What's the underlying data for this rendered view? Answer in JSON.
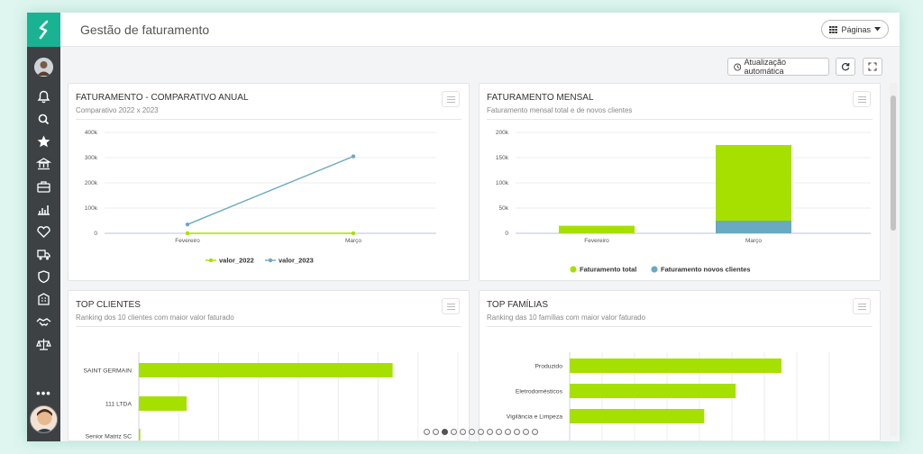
{
  "app": {
    "title": "Gestão de faturamento"
  },
  "header": {
    "pages_label": "Páginas"
  },
  "toolbar": {
    "auto_update_label": "Atualização automática"
  },
  "sidebar": {
    "icons": [
      "bell-icon",
      "search-icon",
      "star-icon",
      "bank-icon",
      "briefcase-icon",
      "chart-icon",
      "heart-icon",
      "truck-icon",
      "shield-icon",
      "building-icon",
      "handshake-icon",
      "scale-icon"
    ],
    "more_label": "•••"
  },
  "panels": {
    "comparativo": {
      "title": "FATURAMENTO - COMPARATIVO ANUAL",
      "subtitle": "Comparativo 2022 x 2023"
    },
    "mensal": {
      "title": "FATURAMENTO MENSAL",
      "subtitle": "Faturamento mensal total e de novos clientes"
    },
    "clientes": {
      "title": "TOP CLIENTES",
      "subtitle": "Ranking dos 10 clientes com maior valor faturado"
    },
    "familias": {
      "title": "TOP FAMÍLIAS",
      "subtitle": "Ranking das 10 famílias com maior valor faturado"
    }
  },
  "pagination": {
    "total": 13,
    "active": 3
  },
  "colors": {
    "accent": "#19b394",
    "green": "#a6e000",
    "blue": "#6aa9c2",
    "sidebar": "#3d4144"
  },
  "chart_data": [
    {
      "type": "line",
      "categories": [
        "Fevereiro",
        "Março"
      ],
      "series": [
        {
          "name": "valor_2022",
          "values": [
            0,
            0
          ],
          "color": "#a6e000"
        },
        {
          "name": "valor_2023",
          "values": [
            35000,
            305000
          ],
          "color": "#6aa9c2"
        }
      ],
      "yticks": [
        "0",
        "100k",
        "200k",
        "300k",
        "400k"
      ],
      "ylim": [
        0,
        400000
      ],
      "legend": "bottom"
    },
    {
      "type": "bar",
      "stacked": true,
      "categories": [
        "Fevereiro",
        "Março"
      ],
      "series": [
        {
          "name": "Faturamento total",
          "values": [
            15000,
            150000
          ],
          "color": "#a6e000"
        },
        {
          "name": "Faturamento novos clientes",
          "values": [
            0,
            25000
          ],
          "color": "#6aa9c2"
        }
      ],
      "yticks": [
        "0",
        "50k",
        "100k",
        "150k",
        "200k"
      ],
      "ylim": [
        0,
        200000
      ],
      "legend": "bottom"
    },
    {
      "type": "bar",
      "orientation": "horizontal",
      "categories": [
        "SAINT GERMAIN",
        "111 LTDA",
        "Senior Matriz SC"
      ],
      "values": [
        350000,
        66000,
        2000
      ],
      "xlim": [
        0,
        440000
      ],
      "color": "#a6e000"
    },
    {
      "type": "bar",
      "orientation": "horizontal",
      "categories": [
        "Produzido",
        "Eletrodomésticos",
        "Vigilância e Limpeza"
      ],
      "values": [
        310000,
        243000,
        197000
      ],
      "xlim": [
        0,
        380000
      ],
      "color": "#a6e000"
    }
  ]
}
